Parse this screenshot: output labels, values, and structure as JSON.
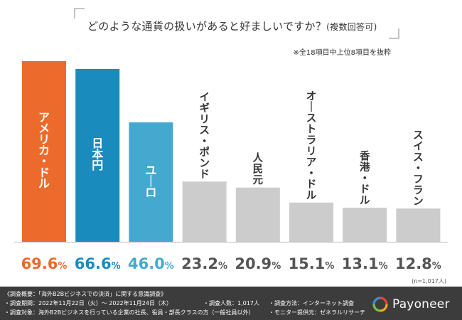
{
  "header": {
    "question": "どのような通貨の扱いがあると好ましいですか？",
    "question_suffix": "(複数回答可)",
    "note": "※全18項目中上位8項目を抜粋"
  },
  "chart_data": {
    "type": "bar",
    "title": "どのような通貨の扱いがあると好ましいですか？(複数回答可)",
    "categories": [
      "アメリカ・ドル",
      "日本円",
      "ユーロ",
      "イギリス・ポンド",
      "人民元",
      "オーストラリア・ドル",
      "香港・ドル",
      "スイス・フラン"
    ],
    "values": [
      69.6,
      66.6,
      46.0,
      23.2,
      20.9,
      15.1,
      13.1,
      12.8
    ],
    "value_labels": [
      "69.6",
      "66.6",
      "46.0",
      "23.2",
      "20.9",
      "15.1",
      "13.1",
      "12.8"
    ],
    "unit": "%",
    "colors": [
      "#ec6a2b",
      "#1a8bbd",
      "#45a8cf",
      "#cccccc",
      "#cccccc",
      "#cccccc",
      "#cccccc",
      "#cccccc"
    ],
    "value_colors": [
      "#ec6a2b",
      "#1a8bbd",
      "#45a8cf",
      "#555555",
      "#555555",
      "#555555",
      "#555555",
      "#555555"
    ],
    "label_colors": [
      "#ffffff",
      "#ffffff",
      "#ffffff",
      "#333333",
      "#333333",
      "#333333",
      "#333333",
      "#333333"
    ],
    "ylim": [
      0,
      100
    ],
    "xlabel": "",
    "ylabel": "",
    "grid": false,
    "sample_note": "(n=1,017人)"
  },
  "footer": {
    "line1": "《調査概要：「海外B2Bビジネスでの決済」に関する意識調査》",
    "line2": "・調査期間：2022年11月22日（火）〜 2022年11月24日（木）",
    "line2b": "・調査人数：1,017人",
    "line2c": "・調査方法：インターネット調査",
    "line3": "・調査対象：海外B2Bビジネスを行っている企業の社長、役員・部長クラスの方（一般社員以外）",
    "line3b": "・モニター提供元：ゼネラルリサーチ",
    "brand": "Payoneer"
  }
}
